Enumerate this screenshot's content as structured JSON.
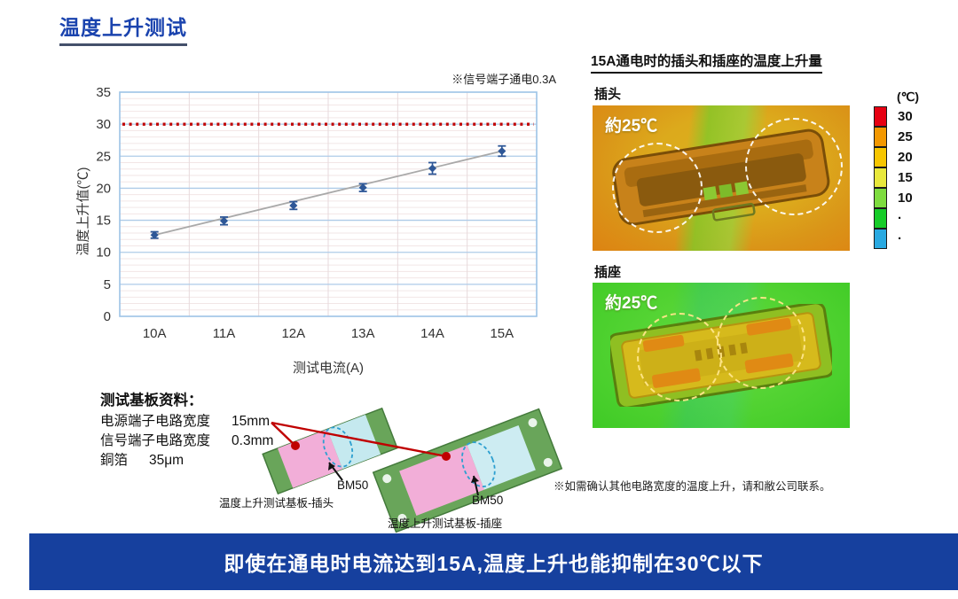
{
  "page": {
    "title": "温度上升测试",
    "banner": "即使在通电时电流达到15A,温度上升也能抑制在30℃以下"
  },
  "chart_data": {
    "type": "line",
    "categories": [
      "10A",
      "11A",
      "12A",
      "13A",
      "14A",
      "15A"
    ],
    "series": [
      {
        "name": "温度上升值",
        "values": [
          12.7,
          14.9,
          17.3,
          20.1,
          23.1,
          25.8
        ],
        "errors": [
          0.5,
          0.6,
          0.6,
          0.6,
          0.9,
          0.8
        ]
      }
    ],
    "threshold": 30,
    "ylim": [
      0,
      35
    ],
    "yticks": [
      0,
      5,
      10,
      15,
      20,
      25,
      30,
      35
    ],
    "xlabel": "测试电流(A)",
    "ylabel": "温度上升值(℃)",
    "note": "※信号端子通电0.3A",
    "grid": true,
    "legend": "none",
    "colors": {
      "marker": "#2e5797",
      "trend": "#a9a9a9",
      "threshold": "#c00000",
      "major_grid": "#aecbe8",
      "minor_grid": "#f2e6e6",
      "vertical_grid": "#e7dadc",
      "border": "#9dc3e6"
    }
  },
  "thermal": {
    "heading": "15A通电时的插头和插座的温度上升量",
    "plug_label": "插头",
    "socket_label": "插座",
    "plug_annotation": "約25℃",
    "socket_annotation": "約25℃",
    "colorbar": {
      "unit": "(℃)",
      "labels": [
        "30",
        "25",
        "20",
        "15",
        "10",
        "·",
        "·"
      ],
      "colors": [
        "#e60012",
        "#f39800",
        "#f7c600",
        "#e8e83c",
        "#7edc3f",
        "#16cc28",
        "#29a9e1"
      ]
    }
  },
  "board": {
    "heading": "测试基板资料：",
    "rows": [
      {
        "label": "电源端子电路宽度",
        "value": "15mm"
      },
      {
        "label": "信号端子电路宽度",
        "value": "0.3mm"
      },
      {
        "label": "銅箔",
        "value": "35μm"
      }
    ],
    "bm50_plug": "BM50",
    "bm50_socket": "BM50",
    "plug_board_caption": "温度上升测试基板-插头",
    "socket_board_caption": "温度上升测试基板-插座",
    "note": "※如需确认其他电路宽度的温度上升，请和敝公司联系。"
  }
}
